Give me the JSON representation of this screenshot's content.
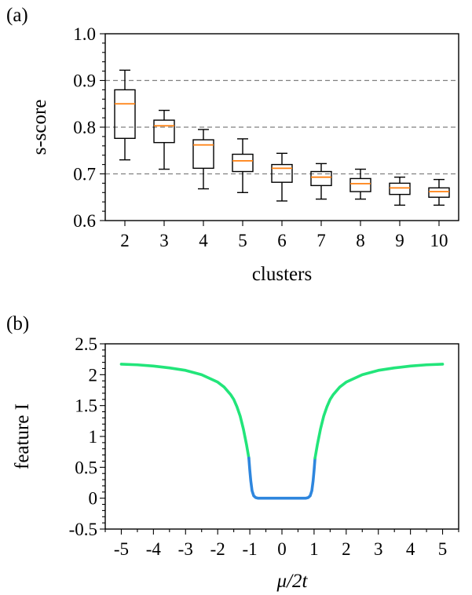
{
  "chart_data": [
    {
      "type": "box",
      "panel_label": "(a)",
      "xlabel": "clusters",
      "ylabel": "s-score",
      "ylim": [
        0.6,
        1.0
      ],
      "yticks": [
        "0.6",
        "0.7",
        "0.8",
        "0.9",
        "1.0"
      ],
      "reference_lines": [
        0.7,
        0.8,
        0.9
      ],
      "grid": false,
      "median_color": "#ff7f0e",
      "box_color": "#000000",
      "boxes": [
        {
          "category": "2",
          "whisker_low": 0.73,
          "q1": 0.776,
          "median": 0.85,
          "q3": 0.88,
          "whisker_high": 0.922
        },
        {
          "category": "3",
          "whisker_low": 0.71,
          "q1": 0.767,
          "median": 0.803,
          "q3": 0.815,
          "whisker_high": 0.836
        },
        {
          "category": "4",
          "whisker_low": 0.668,
          "q1": 0.712,
          "median": 0.762,
          "q3": 0.773,
          "whisker_high": 0.795
        },
        {
          "category": "5",
          "whisker_low": 0.66,
          "q1": 0.705,
          "median": 0.728,
          "q3": 0.742,
          "whisker_high": 0.775
        },
        {
          "category": "6",
          "whisker_low": 0.642,
          "q1": 0.682,
          "median": 0.712,
          "q3": 0.72,
          "whisker_high": 0.744
        },
        {
          "category": "7",
          "whisker_low": 0.646,
          "q1": 0.675,
          "median": 0.693,
          "q3": 0.705,
          "whisker_high": 0.722
        },
        {
          "category": "8",
          "whisker_low": 0.646,
          "q1": 0.662,
          "median": 0.679,
          "q3": 0.69,
          "whisker_high": 0.71
        },
        {
          "category": "9",
          "whisker_low": 0.633,
          "q1": 0.656,
          "median": 0.67,
          "q3": 0.68,
          "whisker_high": 0.693
        },
        {
          "category": "10",
          "whisker_low": 0.633,
          "q1": 0.65,
          "median": 0.662,
          "q3": 0.67,
          "whisker_high": 0.688
        }
      ]
    },
    {
      "type": "line",
      "panel_label": "(b)",
      "xlabel": "μ/2t",
      "ylabel": "feature I",
      "xlim": [
        -5.5,
        5.5
      ],
      "ylim": [
        -0.5,
        2.5
      ],
      "xticks": [
        "-5",
        "-4",
        "-3",
        "-2",
        "-1",
        "0",
        "1",
        "2",
        "3",
        "4",
        "5"
      ],
      "yticks": [
        "-0.5",
        "0",
        "0.5",
        "1",
        "1.5",
        "2",
        "2.5"
      ],
      "grid": false,
      "series": [
        {
          "color": "#22e57a",
          "x": [
            -5,
            -4.5,
            -4,
            -3.5,
            -3,
            -2.5,
            -2,
            -1.8,
            -1.6,
            -1.5,
            -1.4,
            -1.3,
            -1.2,
            -1.1,
            -1.03
          ],
          "y": [
            2.17,
            2.16,
            2.14,
            2.11,
            2.07,
            2.0,
            1.88,
            1.8,
            1.68,
            1.6,
            1.48,
            1.33,
            1.12,
            0.86,
            0.65
          ]
        },
        {
          "color": "#2e86de",
          "x": [
            -1.03,
            -1.0,
            -0.97,
            -0.93,
            -0.88,
            -0.82,
            -0.75,
            0,
            0.75,
            0.82,
            0.88,
            0.93,
            0.97,
            1.0,
            1.03
          ],
          "y": [
            0.65,
            0.45,
            0.28,
            0.12,
            0.04,
            0.01,
            0.0,
            0.0,
            0.0,
            0.01,
            0.04,
            0.12,
            0.28,
            0.45,
            0.65
          ]
        },
        {
          "color": "#22e57a",
          "x": [
            1.03,
            1.1,
            1.2,
            1.3,
            1.4,
            1.5,
            1.6,
            1.8,
            2,
            2.5,
            3,
            3.5,
            4,
            4.5,
            5
          ],
          "y": [
            0.65,
            0.86,
            1.12,
            1.33,
            1.48,
            1.6,
            1.68,
            1.8,
            1.88,
            2.0,
            2.07,
            2.11,
            2.14,
            2.16,
            2.17
          ]
        }
      ]
    }
  ]
}
